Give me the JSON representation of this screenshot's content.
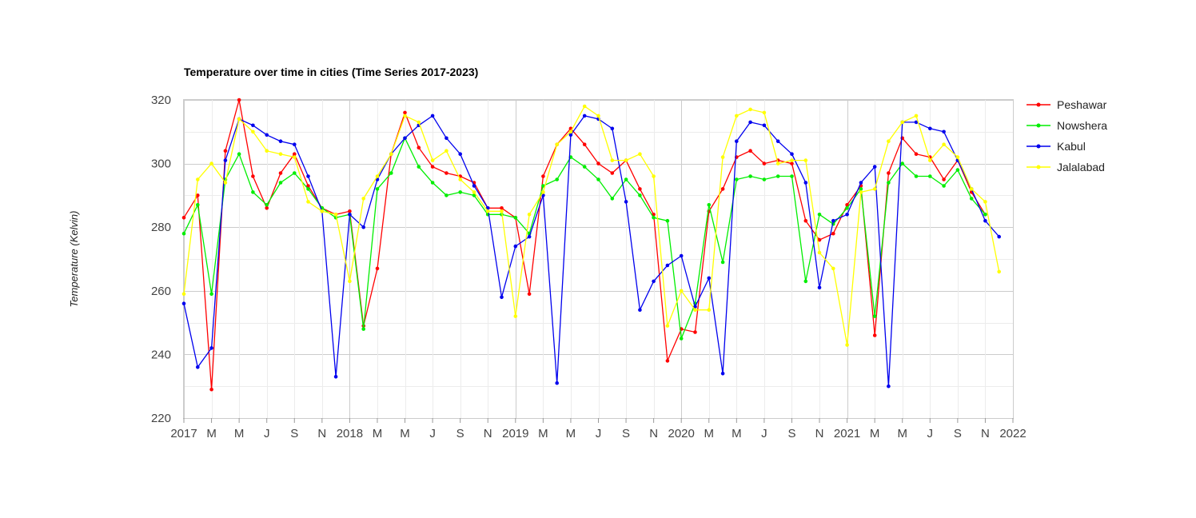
{
  "chart_data": {
    "type": "line",
    "title": "Temperature over time in cities (Time Series 2017-2023)",
    "ylabel": "Temperature (Kelvin)",
    "xlabel": "",
    "ylim": [
      220,
      320
    ],
    "yticks": [
      220,
      240,
      260,
      280,
      300,
      320
    ],
    "xlim": [
      "2017-01",
      "2022-01"
    ],
    "xtick_labels": [
      "2017",
      "M",
      "M",
      "J",
      "S",
      "N",
      "2018",
      "M",
      "M",
      "J",
      "S",
      "N",
      "2019",
      "M",
      "M",
      "J",
      "S",
      "N",
      "2020",
      "M",
      "M",
      "J",
      "S",
      "N",
      "2021",
      "M",
      "M",
      "J",
      "S",
      "N",
      "2022"
    ],
    "grid": true,
    "legend_position": "right",
    "x": [
      "2017-01",
      "2017-02",
      "2017-03",
      "2017-04",
      "2017-05",
      "2017-06",
      "2017-07",
      "2017-08",
      "2017-09",
      "2017-10",
      "2017-11",
      "2017-12",
      "2018-01",
      "2018-02",
      "2018-03",
      "2018-04",
      "2018-05",
      "2018-06",
      "2018-07",
      "2018-08",
      "2018-09",
      "2018-10",
      "2018-11",
      "2018-12",
      "2019-01",
      "2019-02",
      "2019-03",
      "2019-04",
      "2019-05",
      "2019-06",
      "2019-07",
      "2019-08",
      "2019-09",
      "2019-10",
      "2019-11",
      "2019-12",
      "2020-01",
      "2020-02",
      "2020-03",
      "2020-04",
      "2020-05",
      "2020-06",
      "2020-07",
      "2020-08",
      "2020-09",
      "2020-10",
      "2020-11",
      "2020-12",
      "2021-01",
      "2021-02",
      "2021-03",
      "2021-04",
      "2021-05",
      "2021-06",
      "2021-07",
      "2021-08",
      "2021-09",
      "2021-10",
      "2021-11",
      "2021-12"
    ],
    "series": [
      {
        "name": "Peshawar",
        "color": "#ff0000",
        "values": [
          283,
          290,
          229,
          304,
          320,
          296,
          286,
          297,
          303,
          293,
          286,
          284,
          285,
          249,
          267,
          303,
          316,
          305,
          299,
          297,
          296,
          294,
          286,
          286,
          283,
          259,
          296,
          306,
          311,
          306,
          300,
          297,
          301,
          292,
          284,
          238,
          248,
          247,
          285,
          292,
          302,
          304,
          300,
          301,
          300,
          282,
          276,
          278,
          287,
          293,
          246,
          297,
          308,
          303,
          302,
          295,
          301,
          291,
          284,
          null
        ]
      },
      {
        "name": "Nowshera",
        "color": "#00ee00",
        "values": [
          278,
          287,
          259,
          295,
          303,
          291,
          287,
          294,
          297,
          292,
          286,
          283,
          284,
          248,
          292,
          297,
          308,
          299,
          294,
          290,
          291,
          290,
          284,
          284,
          283,
          278,
          293,
          295,
          302,
          299,
          295,
          289,
          295,
          290,
          283,
          282,
          245,
          256,
          287,
          269,
          295,
          296,
          295,
          296,
          296,
          263,
          284,
          281,
          286,
          292,
          252,
          294,
          300,
          296,
          296,
          293,
          298,
          289,
          284,
          null
        ]
      },
      {
        "name": "Kabul",
        "color": "#0000ee",
        "values": [
          256,
          236,
          242,
          301,
          314,
          312,
          309,
          307,
          306,
          296,
          285,
          233,
          284,
          280,
          295,
          303,
          308,
          312,
          315,
          308,
          303,
          293,
          286,
          258,
          274,
          277,
          290,
          231,
          309,
          315,
          314,
          311,
          288,
          254,
          263,
          268,
          271,
          255,
          264,
          234,
          307,
          313,
          312,
          307,
          303,
          294,
          261,
          282,
          284,
          294,
          299,
          230,
          313,
          313,
          311,
          310,
          301,
          292,
          282,
          277
        ]
      },
      {
        "name": "Jalalabad",
        "color": "#ffff00",
        "values": [
          259,
          295,
          300,
          294,
          314,
          310,
          304,
          303,
          302,
          288,
          285,
          284,
          263,
          289,
          296,
          303,
          315,
          313,
          301,
          304,
          295,
          291,
          285,
          285,
          252,
          284,
          291,
          306,
          310,
          318,
          315,
          301,
          301,
          303,
          296,
          249,
          260,
          254,
          254,
          302,
          315,
          317,
          316,
          300,
          301,
          301,
          272,
          267,
          243,
          291,
          292,
          307,
          313,
          315,
          301,
          306,
          302,
          292,
          288,
          266
        ]
      }
    ]
  }
}
